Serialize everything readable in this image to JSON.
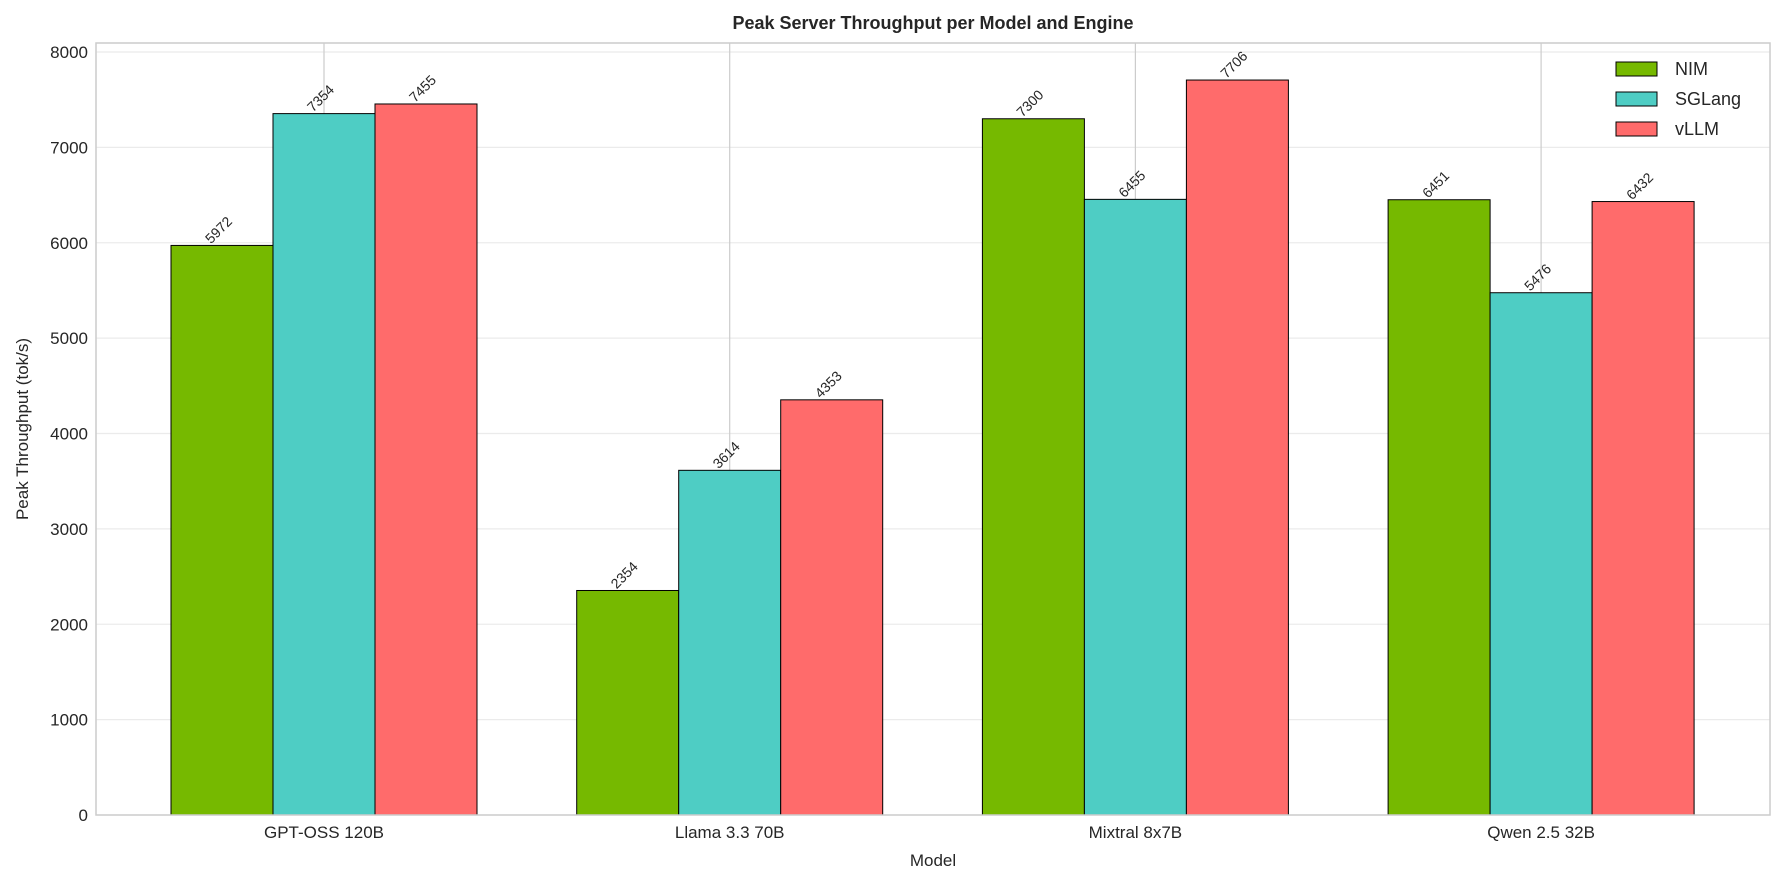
{
  "chart_data": {
    "type": "bar",
    "title": "Peak Server Throughput per Model and Engine",
    "xlabel": "Model",
    "ylabel": "Peak Throughput (tok/s)",
    "ylim": [
      0,
      8000
    ],
    "yticks": [
      0,
      1000,
      2000,
      3000,
      4000,
      5000,
      6000,
      7000,
      8000
    ],
    "categories": [
      "GPT-OSS 120B",
      "Llama 3.3 70B",
      "Mixtral 8x7B",
      "Qwen 2.5 32B"
    ],
    "series": [
      {
        "name": "NIM",
        "color": "#76b900",
        "values": [
          5972,
          2354,
          7300,
          6451
        ]
      },
      {
        "name": "SGLang",
        "color": "#4ecdc4",
        "values": [
          7354,
          3614,
          6455,
          5476
        ]
      },
      {
        "name": "vLLM",
        "color": "#ff6b6b",
        "values": [
          7455,
          4353,
          7706,
          6432
        ]
      }
    ],
    "grid": true,
    "legend_position": "top-right",
    "data_labels": true
  }
}
